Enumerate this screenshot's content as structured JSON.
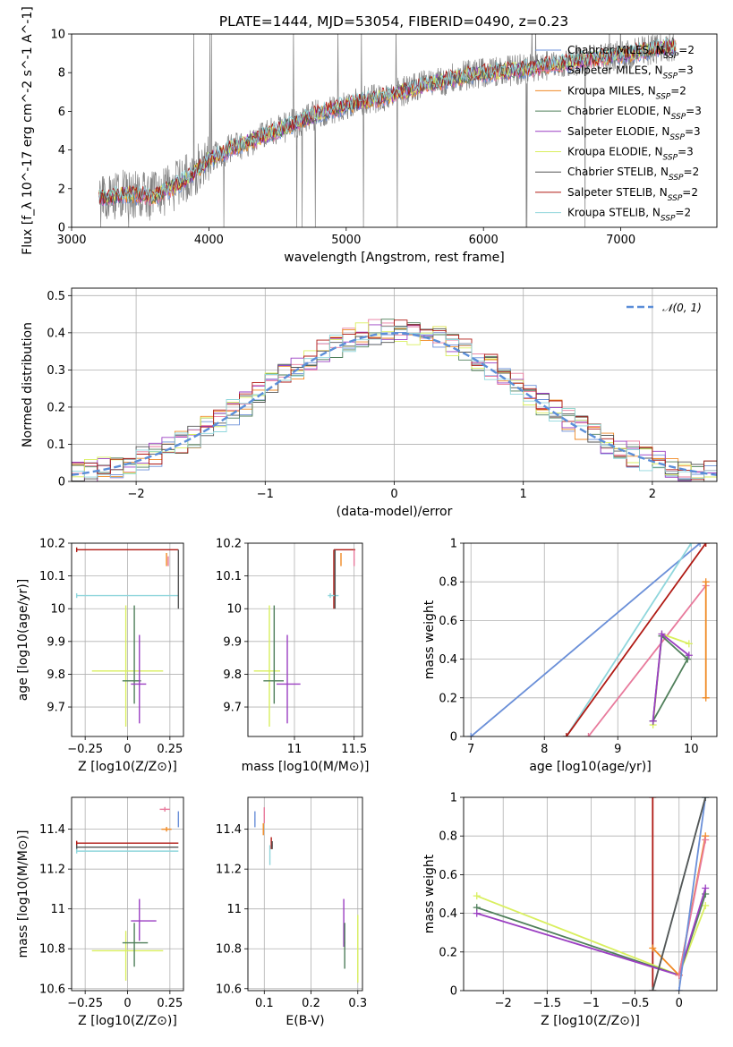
{
  "figure": {
    "title": "PLATE=1444, MJD=53054, FIBERID=0490, z=0.23"
  },
  "series_colors": {
    "Chabrier MILES": "#6a8fd8",
    "Salpeter MILES": "#e87a9c",
    "Kroupa MILES": "#f08a24",
    "Chabrier ELODIE": "#4f7f5a",
    "Salpeter ELODIE": "#9b3fc2",
    "Kroupa ELODIE": "#d9ef5f",
    "Chabrier STELIB": "#555555",
    "Salpeter STELIB": "#b01a14",
    "Kroupa STELIB": "#8fd6dc",
    "data": "#808080",
    "normal": "#5b8ed8"
  },
  "chart_data": [
    {
      "id": "spectrum",
      "type": "line",
      "xlabel": "wavelength [Angstrom, rest frame]",
      "ylabel": "Flux [f_λ 10^-17 erg cm^-2 s^-1 A^-1]",
      "xlim": [
        3000,
        7700
      ],
      "ylim": [
        0,
        10
      ],
      "xticks": [
        3000,
        4000,
        5000,
        6000,
        7000
      ],
      "yticks": [
        0,
        2,
        4,
        6,
        8,
        10
      ],
      "legend_position": "right",
      "legend": [
        {
          "series": "Chabrier MILES",
          "nssp": 2
        },
        {
          "series": "Salpeter MILES",
          "nssp": 3
        },
        {
          "series": "Kroupa MILES",
          "nssp": 2
        },
        {
          "series": "Chabrier ELODIE",
          "nssp": 3
        },
        {
          "series": "Salpeter ELODIE",
          "nssp": 3
        },
        {
          "series": "Kroupa ELODIE",
          "nssp": 3
        },
        {
          "series": "Chabrier STELIB",
          "nssp": 2
        },
        {
          "series": "Salpeter STELIB",
          "nssp": 2
        },
        {
          "series": "Kroupa STELIB",
          "nssp": 2
        }
      ],
      "continuum": {
        "x": [
          3200,
          3400,
          3600,
          3800,
          4000,
          4200,
          4500,
          4800,
          5000,
          5300,
          5600,
          5900,
          6200,
          6600,
          7000,
          7400
        ],
        "y": [
          1.5,
          1.7,
          1.6,
          2.3,
          3.5,
          4.2,
          5.0,
          5.9,
          6.3,
          6.8,
          7.4,
          7.9,
          8.1,
          8.5,
          8.9,
          9.4
        ]
      }
    },
    {
      "id": "residuals",
      "type": "line",
      "xlabel": "(data-model)/error",
      "ylabel": "Normed distribution",
      "xlim": [
        -2.5,
        2.5
      ],
      "ylim": [
        0,
        0.52
      ],
      "xticks": [
        -2,
        -1,
        0,
        1,
        2
      ],
      "yticks": [
        0.0,
        0.1,
        0.2,
        0.3,
        0.4,
        0.5
      ],
      "legend_position": "top-right",
      "legend": [
        "𝒩(0, 1)"
      ],
      "bin_width": 0.1,
      "normal": {
        "mean": 0,
        "sigma": 1
      }
    },
    {
      "id": "Z-age",
      "type": "scatter",
      "xlabel": "Z [log10(Z/Z⊙)]",
      "ylabel": "age  [log10(age/yr)]",
      "xlim": [
        -0.33,
        0.33
      ],
      "ylim": [
        9.61,
        10.2
      ],
      "xticks": [
        -0.25,
        0.0,
        0.25
      ],
      "yticks": [
        9.7,
        9.8,
        9.9,
        10.0,
        10.1,
        10.2
      ],
      "points": [
        {
          "series": "Salpeter STELIB",
          "x": -0.3,
          "y": 10.18,
          "xerr": [
            0,
            0.6
          ]
        },
        {
          "series": "Kroupa STELIB",
          "x": -0.3,
          "y": 10.04,
          "xerr": [
            0,
            0.6
          ]
        },
        {
          "series": "Chabrier STELIB",
          "x": 0.3,
          "y": 10.04,
          "yerr": [
            0.04,
            0.14
          ]
        },
        {
          "series": "Kroupa MILES",
          "x": 0.23,
          "y": 10.15,
          "yerr": [
            0.02,
            0.02
          ]
        },
        {
          "series": "Salpeter MILES",
          "x": 0.24,
          "y": 10.14,
          "yerr": [
            0.01,
            0.02
          ]
        },
        {
          "series": "Kroupa ELODIE",
          "x": -0.01,
          "y": 9.81,
          "xerr": [
            0.2,
            0.22
          ],
          "yerr": [
            0.17,
            0.2
          ]
        },
        {
          "series": "Chabrier ELODIE",
          "x": 0.04,
          "y": 9.78,
          "xerr": [
            0.07,
            0.04
          ],
          "yerr": [
            0.07,
            0.23
          ]
        },
        {
          "series": "Salpeter ELODIE",
          "x": 0.07,
          "y": 9.77,
          "xerr": [
            0.05,
            0.04
          ],
          "yerr": [
            0.12,
            0.15
          ]
        }
      ]
    },
    {
      "id": "mass-age",
      "type": "scatter",
      "xlabel": "mass [log10(M/M⊙)]",
      "ylabel": "",
      "xlim": [
        10.61,
        11.57
      ],
      "ylim": [
        9.61,
        10.2
      ],
      "xticks": [
        11.0,
        11.5
      ],
      "yticks": [
        9.7,
        9.8,
        9.9,
        10.0,
        10.1,
        10.2
      ],
      "points": [
        {
          "series": "Salpeter STELIB",
          "x": 11.33,
          "y": 10.18,
          "xerr": [
            0,
            0.18
          ],
          "yerr": [
            0.18,
            0
          ]
        },
        {
          "series": "Kroupa STELIB",
          "x": 11.3,
          "y": 10.04,
          "xerr": [
            0.02,
            0.07
          ]
        },
        {
          "series": "Chabrier STELIB",
          "x": 11.34,
          "y": 10.04,
          "yerr": [
            0.04,
            0.14
          ]
        },
        {
          "series": "Kroupa MILES",
          "x": 11.39,
          "y": 10.14,
          "yerr": [
            0.01,
            0.03
          ]
        },
        {
          "series": "Salpeter MILES",
          "x": 11.5,
          "y": 10.15,
          "yerr": [
            0.02,
            0.03
          ]
        },
        {
          "series": "Kroupa ELODIE",
          "x": 10.79,
          "y": 9.81,
          "xerr": [
            0.13,
            0.09
          ],
          "yerr": [
            0.17,
            0.2
          ]
        },
        {
          "series": "Chabrier ELODIE",
          "x": 10.83,
          "y": 9.78,
          "xerr": [
            0.09,
            0.08
          ],
          "yerr": [
            0.07,
            0.23
          ]
        },
        {
          "series": "Salpeter ELODIE",
          "x": 10.94,
          "y": 9.77,
          "xerr": [
            0.09,
            0.11
          ],
          "yerr": [
            0.12,
            0.15
          ]
        }
      ]
    },
    {
      "id": "age-weight",
      "type": "line",
      "xlabel": "age  [log10(age/yr)]",
      "ylabel": "mass weight",
      "xlim": [
        6.9,
        10.35
      ],
      "ylim": [
        0,
        1
      ],
      "xticks": [
        7,
        8,
        9,
        10
      ],
      "yticks": [
        0.0,
        0.2,
        0.4,
        0.6,
        0.8,
        1.0
      ],
      "series": [
        {
          "series": "Chabrier MILES",
          "x": [
            7.0,
            10.12
          ],
          "y": [
            0.0,
            1.0
          ]
        },
        {
          "series": "Kroupa STELIB",
          "x": [
            8.3,
            10.0
          ],
          "y": [
            0.0,
            1.0
          ]
        },
        {
          "series": "Salpeter STELIB",
          "x": [
            8.3,
            10.2
          ],
          "y": [
            0.0,
            1.0
          ]
        },
        {
          "series": "Salpeter MILES",
          "x": [
            8.6,
            10.2
          ],
          "y": [
            0.0,
            0.78
          ]
        },
        {
          "series": "Kroupa MILES",
          "x": [
            10.2,
            10.2
          ],
          "y": [
            0.2,
            0.8
          ]
        },
        {
          "series": "Kroupa ELODIE",
          "x": [
            9.48,
            9.6,
            9.97
          ],
          "y": [
            0.06,
            0.53,
            0.48
          ]
        },
        {
          "series": "Chabrier ELODIE",
          "x": [
            9.48,
            9.6,
            9.95,
            9.48
          ],
          "y": [
            0.08,
            0.52,
            0.4,
            0.08
          ]
        },
        {
          "series": "Salpeter ELODIE",
          "x": [
            9.48,
            9.6,
            9.97
          ],
          "y": [
            0.08,
            0.53,
            0.42
          ]
        }
      ]
    },
    {
      "id": "Z-mass",
      "type": "scatter",
      "xlabel": "Z [log10(Z/Z⊙)]",
      "ylabel": "mass [log10(M/M⊙)]",
      "xlim": [
        -0.33,
        0.33
      ],
      "ylim": [
        10.59,
        11.56
      ],
      "xticks": [
        -0.25,
        0.0,
        0.25
      ],
      "yticks": [
        10.6,
        10.8,
        11.0,
        11.2,
        11.4
      ],
      "points": [
        {
          "series": "Salpeter STELIB",
          "x": -0.3,
          "y": 11.33,
          "xerr": [
            0,
            0.6
          ]
        },
        {
          "series": "Chabrier STELIB",
          "x": -0.3,
          "y": 11.31,
          "xerr": [
            0,
            0.6
          ]
        },
        {
          "series": "Kroupa STELIB",
          "x": -0.3,
          "y": 11.29,
          "xerr": [
            0,
            0.6
          ]
        },
        {
          "series": "Salpeter MILES",
          "x": 0.22,
          "y": 11.5,
          "xerr": [
            0.03,
            0.03
          ]
        },
        {
          "series": "Kroupa MILES",
          "x": 0.23,
          "y": 11.4,
          "xerr": [
            0.03,
            0.03
          ]
        },
        {
          "series": "Chabrier MILES",
          "x": 0.3,
          "y": 11.45,
          "yerr": [
            0.04,
            0.04
          ]
        },
        {
          "series": "Kroupa ELODIE",
          "x": -0.01,
          "y": 10.79,
          "xerr": [
            0.2,
            0.22
          ],
          "yerr": [
            0.15,
            0.1
          ]
        },
        {
          "series": "Chabrier ELODIE",
          "x": 0.04,
          "y": 10.83,
          "xerr": [
            0.07,
            0.08
          ],
          "yerr": [
            0.12,
            0.1
          ]
        },
        {
          "series": "Salpeter ELODIE",
          "x": 0.07,
          "y": 10.94,
          "xerr": [
            0.05,
            0.1
          ],
          "yerr": [
            0.1,
            0.11
          ]
        }
      ]
    },
    {
      "id": "ebv-mass",
      "type": "scatter",
      "xlabel": "E(B-V)",
      "ylabel": "",
      "xlim": [
        0.065,
        0.31
      ],
      "ylim": [
        10.59,
        11.56
      ],
      "xticks": [
        0.1,
        0.2,
        0.3
      ],
      "yticks": [
        10.6,
        10.8,
        11.0,
        11.2,
        11.4
      ],
      "points": [
        {
          "series": "Chabrier MILES",
          "x": 0.08,
          "y": 11.45,
          "yerr": [
            0.04,
            0.04
          ]
        },
        {
          "series": "Kroupa MILES",
          "x": 0.098,
          "y": 11.4,
          "yerr": [
            0.03,
            0.03
          ]
        },
        {
          "series": "Salpeter MILES",
          "x": 0.1,
          "y": 11.47,
          "yerr": [
            0.04,
            0.04
          ]
        },
        {
          "series": "Salpeter STELIB",
          "x": 0.115,
          "y": 11.33,
          "yerr": [
            0.03,
            0.03
          ]
        },
        {
          "series": "Chabrier STELIB",
          "x": 0.117,
          "y": 11.32,
          "yerr": [
            0.02,
            0.02
          ]
        },
        {
          "series": "Kroupa STELIB",
          "x": 0.112,
          "y": 11.26,
          "yerr": [
            0.04,
            0.06
          ]
        },
        {
          "series": "Salpeter ELODIE",
          "x": 0.27,
          "y": 10.94,
          "yerr": [
            0.13,
            0.11
          ]
        },
        {
          "series": "Chabrier ELODIE",
          "x": 0.272,
          "y": 10.83,
          "yerr": [
            0.13,
            0.1
          ]
        },
        {
          "series": "Kroupa ELODIE",
          "x": 0.3,
          "y": 10.8,
          "yerr": [
            0.17,
            0.17
          ]
        }
      ]
    },
    {
      "id": "Z-weight",
      "type": "line",
      "xlabel": "Z [log10(Z/Z⊙)]",
      "ylabel": "mass weight",
      "xlim": [
        -2.45,
        0.43
      ],
      "ylim": [
        0,
        1
      ],
      "xticks": [
        -2.0,
        -1.5,
        -1.0,
        -0.5,
        0.0
      ],
      "yticks": [
        0.0,
        0.2,
        0.4,
        0.6,
        0.8,
        1.0
      ],
      "series": [
        {
          "series": "Salpeter STELIB",
          "x": [
            -0.3,
            -0.3
          ],
          "y": [
            0.0,
            1.0
          ]
        },
        {
          "series": "Kroupa ELODIE",
          "x": [
            -2.3,
            0.0,
            0.3
          ],
          "y": [
            0.49,
            0.08,
            0.44
          ]
        },
        {
          "series": "Chabrier ELODIE",
          "x": [
            -2.3,
            0.0,
            0.3
          ],
          "y": [
            0.43,
            0.08,
            0.5
          ]
        },
        {
          "series": "Salpeter ELODIE",
          "x": [
            -2.3,
            0.0,
            0.3
          ],
          "y": [
            0.4,
            0.08,
            0.53
          ]
        },
        {
          "series": "Kroupa MILES",
          "x": [
            -0.3,
            0.0,
            0.3
          ],
          "y": [
            0.22,
            0.08,
            0.8
          ]
        },
        {
          "series": "Salpeter MILES",
          "x": [
            0.0,
            0.3
          ],
          "y": [
            0.08,
            0.78
          ]
        },
        {
          "series": "Chabrier MILES",
          "x": [
            0.0,
            0.3
          ],
          "y": [
            0.0,
            1.0
          ]
        },
        {
          "series": "Kroupa STELIB",
          "x": [
            -0.3,
            0.3
          ],
          "y": [
            0.0,
            1.0
          ]
        },
        {
          "series": "Chabrier STELIB",
          "x": [
            -0.3,
            0.3
          ],
          "y": [
            0.0,
            1.0
          ]
        }
      ]
    }
  ]
}
